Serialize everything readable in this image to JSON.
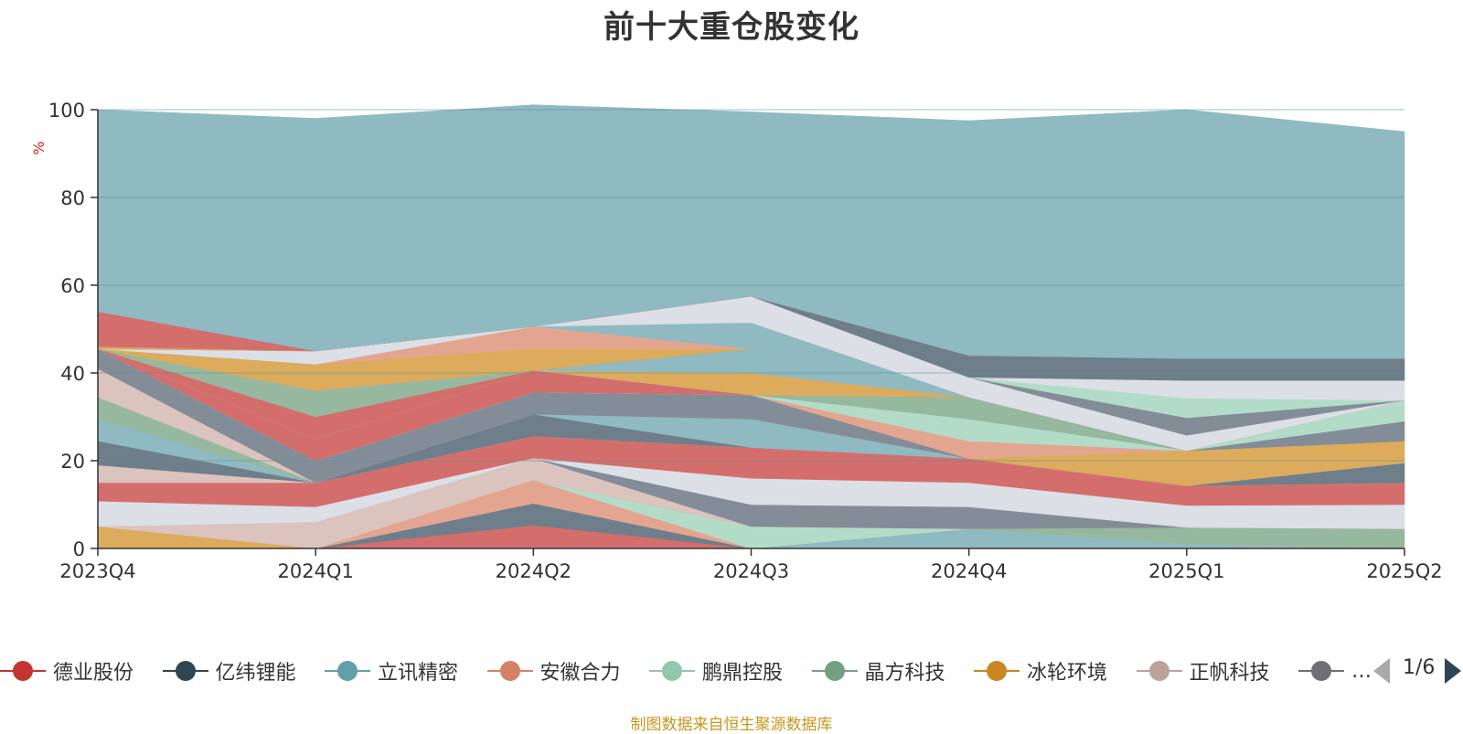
{
  "title": "前十大重仓股变化",
  "chart_data": {
    "type": "area",
    "stacked": true,
    "ylabel": "%",
    "ylim": [
      0,
      100
    ],
    "yticks": [
      0,
      20,
      40,
      60,
      80,
      100
    ],
    "grid": true,
    "legend_position": "bottom",
    "categories": [
      "2023Q4",
      "2024Q1",
      "2024Q2",
      "2024Q3",
      "2024Q4",
      "2025Q1",
      "2025Q2"
    ],
    "series": [
      {
        "name": "",
        "color": "#d46e6c",
        "values": [
          0,
          0,
          5.3,
          0,
          0,
          0,
          0
        ]
      },
      {
        "name": "",
        "color": "#6e7f8b",
        "values": [
          0,
          0,
          5.0,
          0,
          0,
          0,
          0
        ]
      },
      {
        "name": "",
        "color": "#8fbac1",
        "values": [
          0,
          0,
          0,
          0,
          4.5,
          1.0,
          0
        ]
      },
      {
        "name": "",
        "color": "#e4a590",
        "values": [
          0,
          0,
          5.3,
          0,
          0,
          0,
          0
        ]
      },
      {
        "name": "",
        "color": "#b3dcc8",
        "values": [
          0,
          0,
          0,
          5.0,
          0,
          0,
          0
        ]
      },
      {
        "name": "",
        "color": "#96b89e",
        "values": [
          0,
          0,
          0,
          0,
          0,
          3.8,
          4.5
        ]
      },
      {
        "name": "",
        "color": "#dcab5c",
        "values": [
          5.0,
          0,
          0,
          0,
          0,
          0,
          0
        ]
      },
      {
        "name": "",
        "color": "#dbc3be",
        "values": [
          0,
          6.0,
          5.0,
          0,
          0,
          0,
          0
        ]
      },
      {
        "name": "",
        "color": "#838d98",
        "values": [
          0,
          0,
          0,
          5.0,
          5.0,
          0,
          0
        ]
      },
      {
        "name": "",
        "color": "#dcdfe6",
        "values": [
          5.8,
          3.5,
          0,
          6.0,
          5.5,
          5.0,
          5.5
        ]
      },
      {
        "name": "",
        "color": "#d46e6c",
        "values": [
          4.2,
          5.5,
          5.0,
          7.0,
          5.5,
          4.5,
          5.0
        ]
      },
      {
        "name": "",
        "color": "#dbc3be",
        "values": [
          4.0,
          0,
          0,
          0,
          0,
          0,
          0
        ]
      },
      {
        "name": "",
        "color": "#6e7f8b",
        "values": [
          5.5,
          0,
          5.0,
          0,
          0,
          0,
          4.5
        ]
      },
      {
        "name": "",
        "color": "#8fbac1",
        "values": [
          5.0,
          0,
          0,
          6.5,
          0,
          0,
          0
        ]
      },
      {
        "name": "",
        "color": "#96b89e",
        "values": [
          5.0,
          0,
          0,
          0,
          0,
          0,
          0
        ]
      },
      {
        "name": "",
        "color": "#dbc3be",
        "values": [
          6.5,
          0,
          0,
          0,
          0,
          0,
          0
        ]
      },
      {
        "name": "",
        "color": "#838d98",
        "values": [
          4.5,
          5.0,
          5.0,
          5.5,
          0,
          0,
          0
        ]
      },
      {
        "name": "",
        "color": "#dcab5c",
        "values": [
          0,
          0,
          0,
          0,
          0,
          8.0,
          5.0
        ]
      },
      {
        "name": "",
        "color": "#e4a590",
        "values": [
          0,
          0,
          0,
          0,
          4.0,
          0,
          0
        ]
      },
      {
        "name": "",
        "color": "#b3dcc8",
        "values": [
          0,
          0,
          0,
          0,
          5.0,
          0,
          0
        ]
      },
      {
        "name": "",
        "color": "#96b89e",
        "values": [
          0,
          0,
          0,
          0,
          5.0,
          0,
          0
        ]
      },
      {
        "name": "",
        "color": "#d46e6c",
        "values": [
          0,
          5.0,
          5.0,
          0,
          0,
          0,
          0
        ]
      },
      {
        "name": "",
        "color": "#838d98",
        "values": [
          0,
          0,
          0,
          0,
          0,
          0,
          4.5
        ]
      },
      {
        "name": "",
        "color": "#b3dcc8",
        "values": [
          0,
          0,
          0,
          0,
          0,
          0,
          4.8
        ]
      },
      {
        "name": "",
        "color": "#dcab5c",
        "values": [
          0,
          0,
          0,
          5.0,
          0,
          0,
          0
        ]
      },
      {
        "name": "",
        "color": "#8fbac1",
        "values": [
          0,
          0,
          0,
          5.5,
          0,
          0,
          0
        ]
      },
      {
        "name": "",
        "color": "#d46e6c",
        "values": [
          0,
          5.0,
          0,
          0,
          0,
          0,
          0
        ]
      },
      {
        "name": "",
        "color": "#96b89e",
        "values": [
          0,
          6.0,
          0,
          0,
          0,
          0,
          0
        ]
      },
      {
        "name": "",
        "color": "#dcab5c",
        "values": [
          0,
          6.0,
          5.0,
          0,
          0,
          0,
          0
        ]
      },
      {
        "name": "",
        "color": "#e4a590",
        "values": [
          0,
          0,
          5.0,
          0,
          0,
          0,
          0
        ]
      },
      {
        "name": "",
        "color": "#8fbac1",
        "values": [
          0,
          0,
          0,
          6.0,
          0,
          0,
          0
        ]
      },
      {
        "name": "",
        "color": "#dcdfe6",
        "values": [
          0,
          3.0,
          0,
          6.0,
          4.5,
          3.5,
          0
        ]
      },
      {
        "name": "",
        "color": "#838d98",
        "values": [
          0,
          0,
          0,
          0,
          0,
          4.0,
          0
        ]
      },
      {
        "name": "",
        "color": "#b3dcc8",
        "values": [
          0,
          0,
          0,
          0,
          0,
          4.5,
          0
        ]
      },
      {
        "name": "",
        "color": "#dcdfe6",
        "values": [
          0,
          0,
          0,
          0,
          0,
          4.0,
          4.5
        ]
      },
      {
        "name": "",
        "color": "#6e7f8b",
        "values": [
          0,
          0,
          0,
          0,
          5.0,
          5.0,
          5.0
        ]
      },
      {
        "name": "",
        "color": "#dcab5c",
        "values": [
          0.5,
          0,
          0,
          0,
          0,
          0,
          0
        ]
      },
      {
        "name": "",
        "color": "#d46e6c",
        "values": [
          8.0,
          0,
          0,
          0,
          0,
          0,
          0
        ]
      },
      {
        "name": "",
        "color": "#8fbac1",
        "values": [
          46.0,
          53.0,
          50.5,
          42.0,
          53.5,
          56.7,
          51.7
        ]
      }
    ],
    "legend": [
      {
        "name": "德业股份",
        "color": "#c23531"
      },
      {
        "name": "亿纬锂能",
        "color": "#2f4554"
      },
      {
        "name": "立讯精密",
        "color": "#61a0a8"
      },
      {
        "name": "安徽合力",
        "color": "#d48265"
      },
      {
        "name": "鹏鼎控股",
        "color": "#91c7ae"
      },
      {
        "name": "晶方科技",
        "color": "#749f83"
      },
      {
        "name": "冰轮环境",
        "color": "#ca8622"
      },
      {
        "name": "正帆科技",
        "color": "#bda29a"
      },
      {
        "name": "…",
        "color": "#6e7074"
      }
    ]
  },
  "pager": {
    "text": "1/6"
  },
  "source": "制图数据来自恒生聚源数据库"
}
